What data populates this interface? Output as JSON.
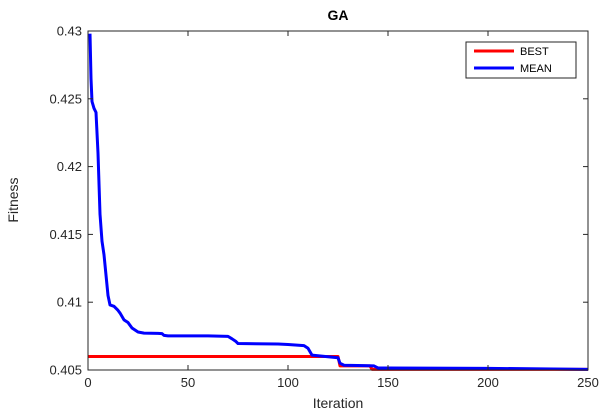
{
  "chart_data": {
    "type": "line",
    "title": "GA",
    "xlabel": "Iteration",
    "ylabel": "Fitness",
    "xlim": [
      0,
      250
    ],
    "ylim": [
      0.405,
      0.43
    ],
    "xticks": [
      0,
      50,
      100,
      150,
      200,
      250
    ],
    "xtick_labels": [
      "0",
      "50",
      "100",
      "150",
      "200",
      "250"
    ],
    "yticks": [
      0.405,
      0.41,
      0.415,
      0.42,
      0.425,
      0.43
    ],
    "ytick_labels": [
      "0.405",
      "0.41",
      "0.415",
      "0.42",
      "0.425",
      "0.43"
    ],
    "grid": false,
    "legend_position": "top-right",
    "series": [
      {
        "name": "BEST",
        "color": "#ff0000",
        "points": [
          [
            0,
            0.406
          ],
          [
            125,
            0.406
          ],
          [
            126,
            0.4053
          ],
          [
            141,
            0.4053
          ],
          [
            142,
            0.40505
          ],
          [
            250,
            0.40505
          ]
        ]
      },
      {
        "name": "MEAN",
        "color": "#0000ff",
        "points": [
          [
            1,
            0.4298
          ],
          [
            1.5,
            0.4265
          ],
          [
            2,
            0.4248
          ],
          [
            3,
            0.4243
          ],
          [
            4,
            0.424
          ],
          [
            5,
            0.421
          ],
          [
            6,
            0.4165
          ],
          [
            7,
            0.4145
          ],
          [
            8,
            0.4135
          ],
          [
            9,
            0.412
          ],
          [
            10,
            0.4105
          ],
          [
            11,
            0.4098
          ],
          [
            13,
            0.4097
          ],
          [
            15,
            0.4094
          ],
          [
            16,
            0.4092
          ],
          [
            18,
            0.4087
          ],
          [
            20,
            0.4085
          ],
          [
            22,
            0.4081
          ],
          [
            25,
            0.4078
          ],
          [
            28,
            0.40772
          ],
          [
            35,
            0.4077
          ],
          [
            37,
            0.40768
          ],
          [
            38,
            0.40755
          ],
          [
            40,
            0.40752
          ],
          [
            60,
            0.40752
          ],
          [
            70,
            0.40748
          ],
          [
            72,
            0.4073
          ],
          [
            74,
            0.4071
          ],
          [
            75,
            0.40695
          ],
          [
            95,
            0.40692
          ],
          [
            100,
            0.40688
          ],
          [
            108,
            0.4068
          ],
          [
            110,
            0.4066
          ],
          [
            112,
            0.4061
          ],
          [
            115,
            0.40605
          ],
          [
            120,
            0.40598
          ],
          [
            125,
            0.4059
          ],
          [
            126,
            0.4055
          ],
          [
            128,
            0.40535
          ],
          [
            138,
            0.40532
          ],
          [
            143,
            0.4053
          ],
          [
            145,
            0.40515
          ],
          [
            150,
            0.40515
          ],
          [
            200,
            0.40512
          ],
          [
            250,
            0.40505
          ]
        ]
      }
    ]
  }
}
